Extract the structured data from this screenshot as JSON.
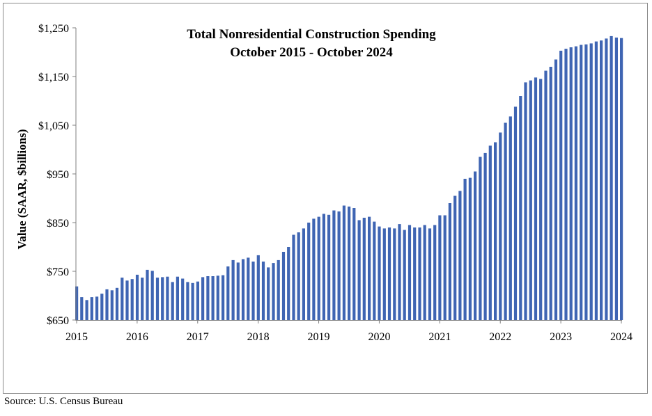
{
  "chart_data": {
    "type": "bar",
    "title": [
      "Total Nonresidential Construction Spending",
      "October 2015 - October 2024"
    ],
    "xlabel": "",
    "ylabel": "Value (SAAR, $billions)",
    "ylim": [
      650,
      1250
    ],
    "yticks": [
      "$650",
      "$750",
      "$850",
      "$950",
      "$1,050",
      "$1,150",
      "$1,250"
    ],
    "ytick_values": [
      650,
      750,
      850,
      950,
      1050,
      1150,
      1250
    ],
    "xticks": [
      "2015",
      "2016",
      "2017",
      "2018",
      "2019",
      "2020",
      "2021",
      "2022",
      "2023",
      "2024"
    ],
    "grid": false,
    "color": "#3f65b3",
    "values": [
      719,
      697,
      691,
      697,
      698,
      704,
      713,
      711,
      716,
      737,
      731,
      734,
      743,
      737,
      753,
      751,
      737,
      738,
      739,
      728,
      739,
      735,
      728,
      726,
      729,
      738,
      740,
      740,
      741,
      742,
      760,
      773,
      768,
      775,
      778,
      770,
      783,
      770,
      758,
      767,
      773,
      790,
      800,
      825,
      830,
      838,
      850,
      858,
      862,
      868,
      866,
      875,
      873,
      885,
      883,
      880,
      855,
      860,
      862,
      852,
      842,
      838,
      840,
      838,
      847,
      835,
      845,
      840,
      840,
      845,
      838,
      845,
      865,
      865,
      890,
      905,
      915,
      940,
      942,
      955,
      985,
      993,
      1008,
      1015,
      1035,
      1055,
      1068,
      1088,
      1110,
      1138,
      1142,
      1148,
      1145,
      1162,
      1170,
      1185,
      1203,
      1207,
      1210,
      1212,
      1215,
      1216,
      1218,
      1222,
      1224,
      1228,
      1233,
      1230,
      1229
    ]
  },
  "source": "Source:  U.S. Census Bureau"
}
